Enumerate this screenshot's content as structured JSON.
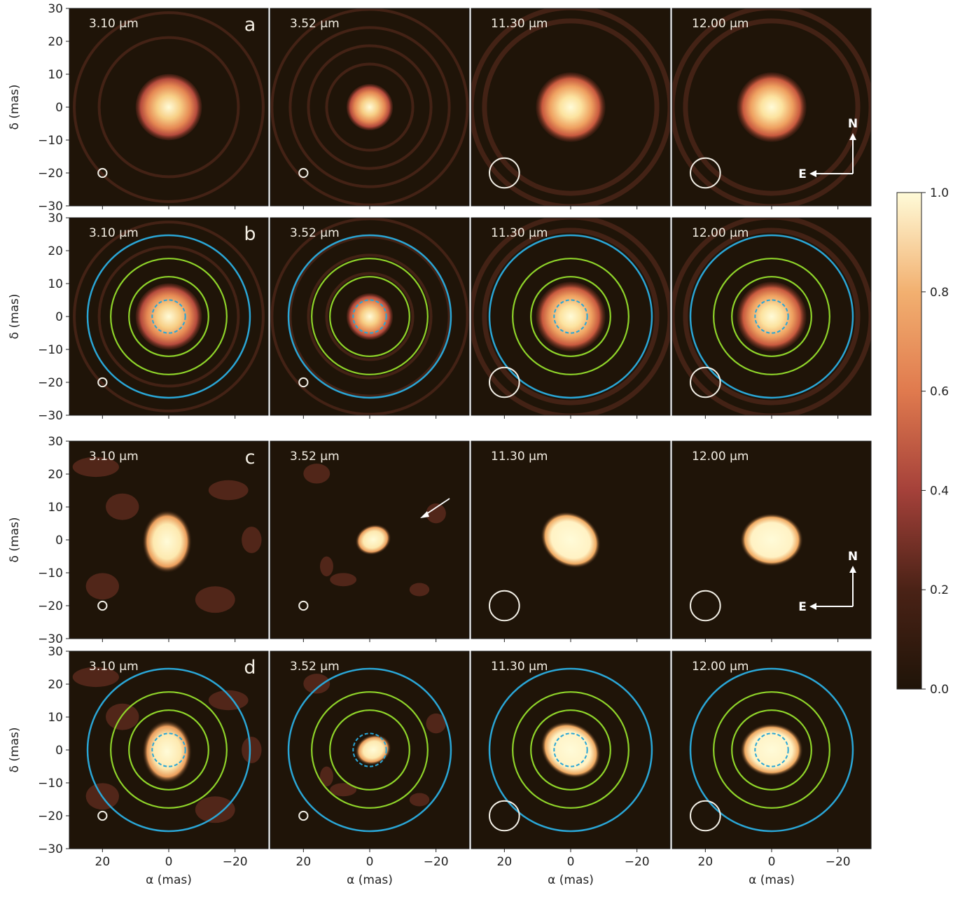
{
  "figure": {
    "wavelengths": [
      "3.10 µm",
      "3.52 µm",
      "11.30 µm",
      "12.00 µm"
    ],
    "rows": [
      {
        "letter": "a",
        "type": "model"
      },
      {
        "letter": "b",
        "type": "model-annotated"
      },
      {
        "letter": "c",
        "type": "reconstruction"
      },
      {
        "letter": "d",
        "type": "reconstruction-annotated"
      }
    ],
    "y_label": "δ (mas)",
    "x_label": "α (mas)",
    "x_ticks": [
      "20",
      "0",
      "−20"
    ],
    "y_ticks": [
      "30",
      "20",
      "10",
      "0",
      "−10",
      "−20",
      "−30"
    ],
    "axis_range_mas": [
      -30,
      30
    ],
    "colorbar": {
      "ticks": [
        "1.0",
        "0.8",
        "0.6",
        "0.4",
        "0.2",
        "0.0"
      ],
      "range": [
        0,
        1
      ],
      "colormap": [
        "#1f1408",
        "#4a2216",
        "#a5413a",
        "#e07a4e",
        "#f2b070",
        "#fffbd8"
      ]
    },
    "compass": {
      "north": "N",
      "east": "E"
    },
    "ring_colors": {
      "outer": "#2aa6d6",
      "middle": "#8fd42a",
      "core_dashed": "#2aa6d6",
      "beam": "#f2efe6"
    },
    "ring_radii_mas": {
      "outer": 24.5,
      "middle_outer": 17.5,
      "middle_inner": 12.0,
      "core": 5.0
    },
    "beam_radii_mas": [
      1.3,
      1.3,
      4.5,
      4.5
    ]
  }
}
